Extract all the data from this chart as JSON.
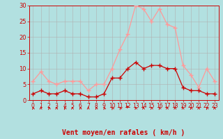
{
  "hours": [
    0,
    1,
    2,
    3,
    4,
    5,
    6,
    7,
    8,
    9,
    10,
    11,
    12,
    13,
    14,
    15,
    16,
    17,
    18,
    19,
    20,
    21,
    22,
    23
  ],
  "wind_mean": [
    2,
    3,
    2,
    2,
    3,
    2,
    2,
    1,
    1,
    2,
    7,
    7,
    10,
    12,
    10,
    11,
    11,
    10,
    10,
    4,
    3,
    3,
    2,
    2
  ],
  "wind_gust": [
    6,
    9,
    6,
    5,
    6,
    6,
    6,
    3,
    5,
    5,
    10,
    16,
    21,
    30,
    29,
    25,
    29,
    24,
    23,
    11,
    8,
    4,
    10,
    6
  ],
  "wind_dir_angles": [
    200,
    180,
    210,
    180,
    210,
    180,
    190,
    180,
    200,
    210,
    220,
    220,
    230,
    200,
    180,
    200,
    210,
    180,
    180,
    180,
    200,
    180,
    210,
    180
  ],
  "bg_color": "#b2e0e0",
  "grid_color": "#b0b0b0",
  "mean_color": "#cc0000",
  "gust_color": "#ff9999",
  "xlabel": "Vent moyen/en rafales ( km/h )",
  "xlabel_color": "#cc0000",
  "tick_color": "#cc0000",
  "ylim": [
    0,
    30
  ],
  "yticks": [
    0,
    5,
    10,
    15,
    20,
    25,
    30
  ]
}
